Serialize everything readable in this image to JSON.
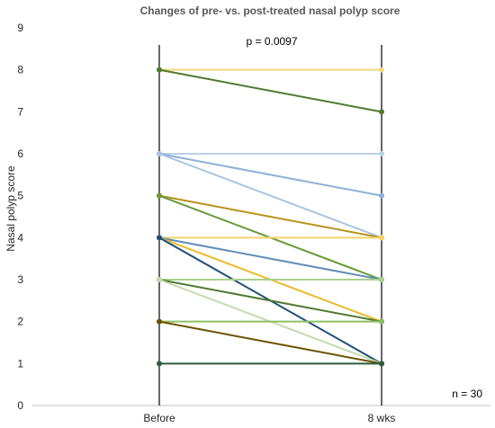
{
  "chart_data": {
    "type": "line",
    "title": "Changes of pre- vs. post-treated nasal polyp score",
    "ylabel": "Nasal polyp score",
    "xlabel": "",
    "categories": [
      "Before",
      "8 wks"
    ],
    "ylim": [
      0,
      9
    ],
    "yticks": [
      "0",
      "1",
      "2",
      "3",
      "4",
      "5",
      "6",
      "7",
      "8",
      "9"
    ],
    "annotations": {
      "p_value": "p = 0.0097",
      "n": "n = 30"
    },
    "series": [
      {
        "values": [
          8,
          8
        ],
        "color": "#F6D87E"
      },
      {
        "values": [
          8,
          7
        ],
        "color": "#4E7A2E"
      },
      {
        "values": [
          6,
          6
        ],
        "color": "#BDD0E8"
      },
      {
        "values": [
          6,
          5
        ],
        "color": "#8FB0D6"
      },
      {
        "values": [
          6,
          4
        ],
        "color": "#A9C4E0"
      },
      {
        "values": [
          5,
          4
        ],
        "color": "#B8921A"
      },
      {
        "values": [
          5,
          3
        ],
        "color": "#6A9A3A"
      },
      {
        "values": [
          4,
          4
        ],
        "color": "#F3D36B"
      },
      {
        "values": [
          4,
          3
        ],
        "color": "#5F8DBA"
      },
      {
        "values": [
          4,
          2
        ],
        "color": "#EDBA2B"
      },
      {
        "values": [
          4,
          1
        ],
        "color": "#1F4E79"
      },
      {
        "values": [
          3,
          3
        ],
        "color": "#A8D08D"
      },
      {
        "values": [
          3,
          2
        ],
        "color": "#4E7A2E"
      },
      {
        "values": [
          3,
          1
        ],
        "color": "#C4DBAE"
      },
      {
        "values": [
          2,
          2
        ],
        "color": "#8CBF63"
      },
      {
        "values": [
          2,
          1
        ],
        "color": "#6B5200"
      },
      {
        "values": [
          1,
          1
        ],
        "color": "#2F5C3A"
      }
    ]
  }
}
